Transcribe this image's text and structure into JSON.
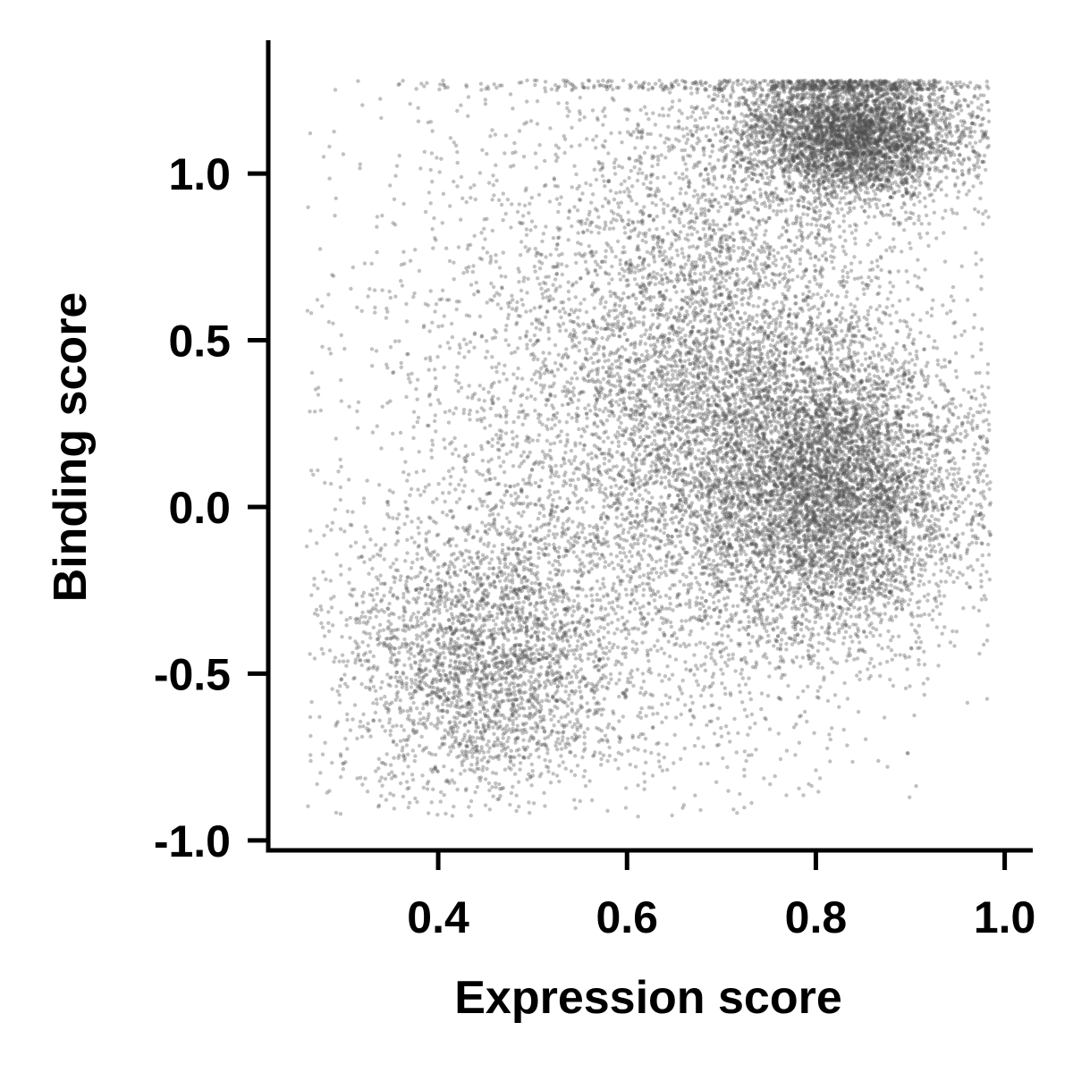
{
  "chart_data": {
    "type": "scatter",
    "title": "",
    "xlabel": "Expression score",
    "ylabel": "Binding score",
    "xlim": [
      0.22,
      1.025
    ],
    "ylim": [
      -1.03,
      1.4
    ],
    "x_ticks": [
      0.4,
      0.6,
      0.8,
      1.0
    ],
    "x_tick_labels": [
      "0.4",
      "0.6",
      "0.8",
      "1.0"
    ],
    "y_ticks": [
      -1.0,
      -0.5,
      0.0,
      0.5,
      1.0
    ],
    "y_tick_labels": [
      "-1.0",
      "-0.5",
      "0.0",
      "0.5",
      "1.0"
    ],
    "grid": false,
    "legend": "none",
    "point_color": "#4d4d4d",
    "point_alpha": 0.35,
    "series": [
      {
        "point_count_approx": 20000,
        "density_clusters": [
          {
            "x_center": 0.84,
            "y_center": 1.12,
            "x_spread": 0.06,
            "y_spread": 0.1,
            "weight": 0.22
          },
          {
            "x_center": 0.82,
            "y_center": 0.05,
            "x_spread": 0.07,
            "y_spread": 0.22,
            "weight": 0.26
          },
          {
            "x_center": 0.7,
            "y_center": 0.35,
            "x_spread": 0.1,
            "y_spread": 0.45,
            "weight": 0.26
          },
          {
            "x_center": 0.45,
            "y_center": -0.45,
            "x_spread": 0.08,
            "y_spread": 0.22,
            "weight": 0.14
          },
          {
            "x_center": 0.55,
            "y_center": 0.3,
            "x_spread": 0.15,
            "y_spread": 0.55,
            "weight": 0.12
          }
        ],
        "y_max_cap": 1.28,
        "x_max_cap": 0.985
      }
    ]
  }
}
